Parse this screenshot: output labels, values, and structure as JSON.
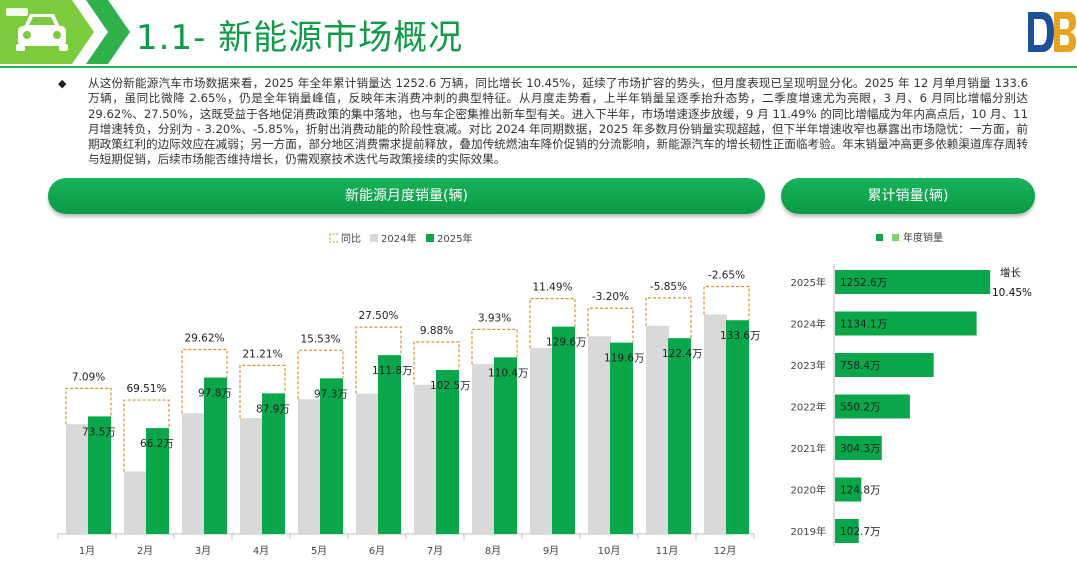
{
  "header": {
    "title": "1.1- 新能源市场概况",
    "icon": "car-icon",
    "logo": "DB-logo-icon"
  },
  "summary": {
    "bullet": "◆",
    "text": "从这份新能源汽车市场数据来看，2025 年全年累计销量达 1252.6 万辆，同比增长 10.45%，延续了市场扩容的势头，但月度表现已呈现明显分化。2025 年 12 月单月销量 133.6 万辆，虽同比微降 2.65%，仍是全年销量峰值，反映年末消费冲刺的典型特征。从月度走势看，上半年销量呈逐季抬升态势，二季度增速尤为亮眼，3 月、6 月同比增幅分别达 29.62%、27.50%，这既受益于各地促消费政策的集中落地，也与车企密集推出新车型有关。进入下半年，市场增速逐步放缓，9 月 11.49% 的同比增幅成为年内高点后，10 月、11 月增速转负，分别为 - 3.20%、-5.85%，折射出消费动能的阶段性衰减。对比 2024 年同期数据，2025 年多数月份销量实现超越，但下半年增速收窄也暴露出市场隐忧：一方面，前期政策红利的边际效应在减弱；另一方面，部分地区消费需求提前释放，叠加传统燃油车降价促销的分流影响，新能源汽车的增长韧性正面临考验。年末销量冲高更多依赖渠道库存周转与短期促销，后续市场能否维持增长，仍需观察技术迭代与政策接续的实际效果。"
  },
  "panels": {
    "monthly_title": "新能源月度销量(辆)",
    "cumulative_title": "累计销量(辆)"
  },
  "colors": {
    "green": "#0aa64a",
    "gray": "#d9d9d9",
    "orange": "#e2902b",
    "title_green": "#0e9a47"
  },
  "chart_data": [
    {
      "type": "bar",
      "legend": [
        "同比",
        "2024年",
        "2025年"
      ],
      "legend_position": "top-center",
      "categories": [
        "1月",
        "2月",
        "3月",
        "4月",
        "5月",
        "6月",
        "7月",
        "8月",
        "9月",
        "10月",
        "11月",
        "12月"
      ],
      "series": [
        {
          "name": "2024年",
          "values": [
            68.6,
            39.1,
            75.5,
            72.5,
            84.2,
            87.7,
            93.3,
            106.2,
            116.2,
            123.6,
            130.1,
            137.2
          ]
        },
        {
          "name": "2025年",
          "values": [
            73.5,
            66.2,
            97.8,
            87.9,
            97.3,
            111.8,
            102.5,
            110.4,
            129.6,
            119.6,
            122.4,
            133.6
          ],
          "labels": [
            "73.5万",
            "66.2万",
            "97.8万",
            "87.9万",
            "97.3万",
            "111.8万",
            "102.5万",
            "110.4万",
            "129.6万",
            "119.6万",
            "122.4万",
            "133.6万"
          ]
        },
        {
          "name": "同比",
          "values": [
            7.09,
            69.51,
            29.62,
            21.21,
            15.53,
            27.5,
            9.88,
            3.93,
            11.49,
            -3.2,
            -5.85,
            -2.65
          ],
          "labels": [
            "7.09%",
            "69.51%",
            "29.62%",
            "21.21%",
            "15.53%",
            "27.50%",
            "9.88%",
            "3.93%",
            "11.49%",
            "-3.20%",
            "-5.85%",
            "-2.65%"
          ]
        }
      ],
      "ylim": [
        0,
        170
      ]
    },
    {
      "type": "bar",
      "orientation": "horizontal",
      "legend": [
        "",
        "年度销量"
      ],
      "legend_position": "top-center",
      "categories": [
        "2025年",
        "2024年",
        "2023年",
        "2022年",
        "2021年",
        "2020年",
        "2019年"
      ],
      "values": [
        1252.6,
        1134.1,
        758.4,
        550.2,
        304.3,
        124.8,
        102.7
      ],
      "labels": [
        "1252.6万",
        "1134.1万",
        "758.4万",
        "550.2万",
        "304.3万",
        "124.8万",
        "102.7万"
      ],
      "annotation": {
        "label": "增长",
        "value": "10.45%"
      },
      "xlim": [
        0,
        1400
      ]
    }
  ]
}
